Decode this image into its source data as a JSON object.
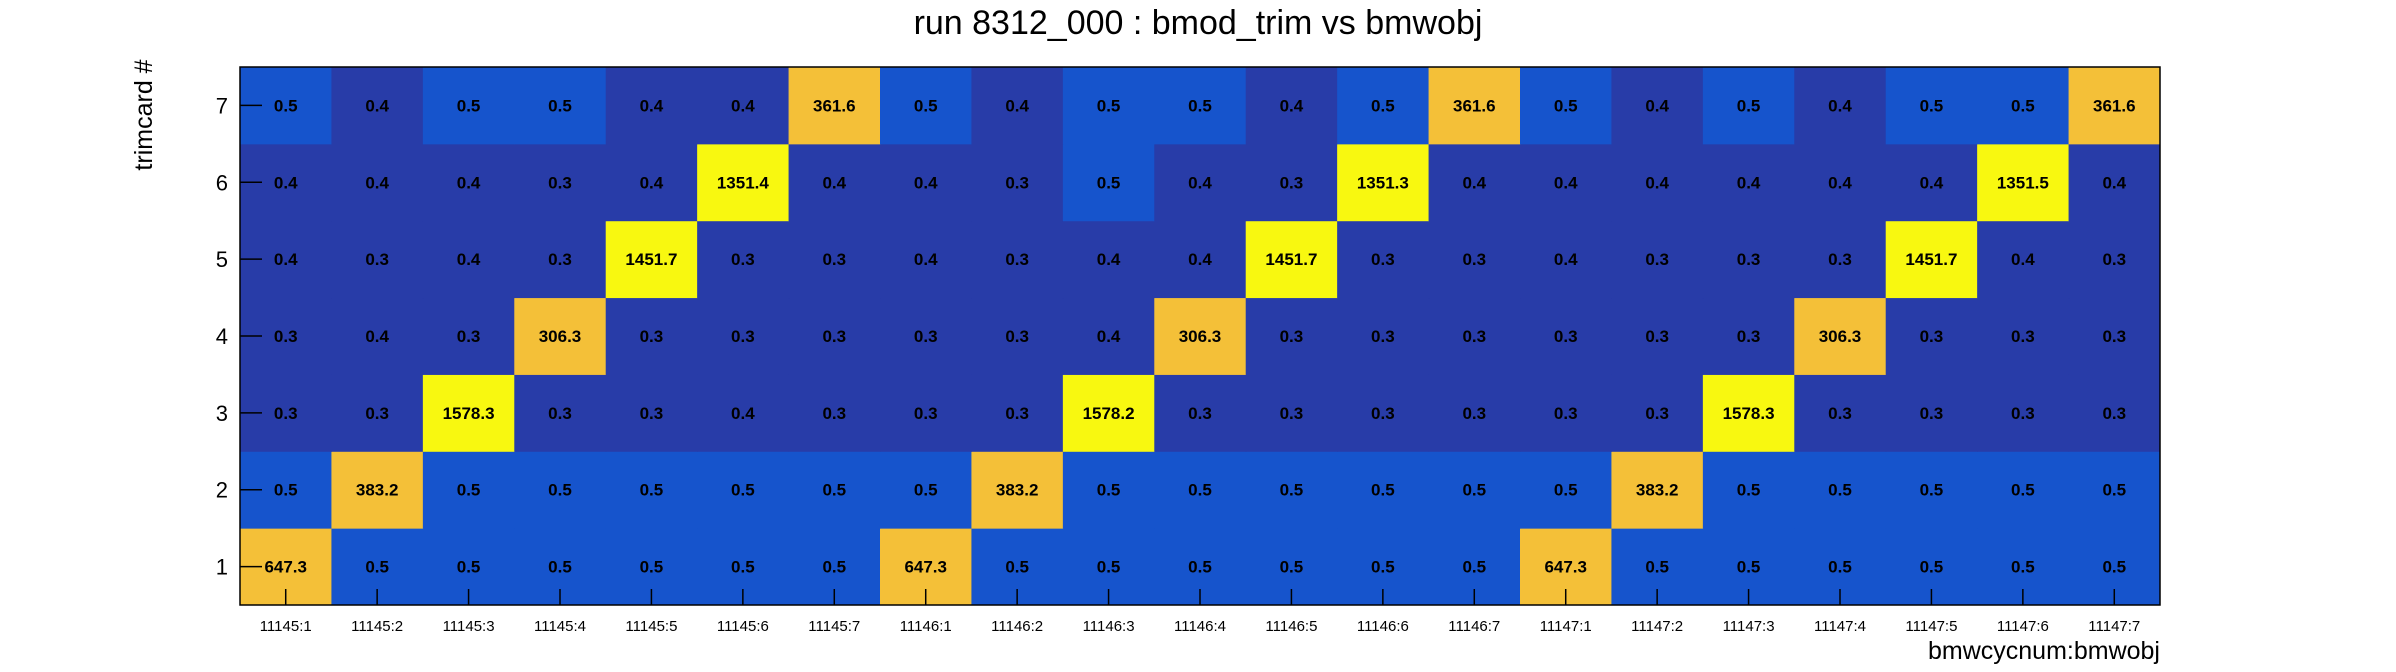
{
  "chart_data": {
    "type": "heatmap",
    "title": "run 8312_000 : bmod_trim vs bmwobj",
    "xlabel": "bmwcycnum:bmwobj",
    "ylabel": "trimcard #",
    "x_categories": [
      "11145:1",
      "11145:2",
      "11145:3",
      "11145:4",
      "11145:5",
      "11145:6",
      "11145:7",
      "11146:1",
      "11146:2",
      "11146:3",
      "11146:4",
      "11146:5",
      "11146:6",
      "11146:7",
      "11147:1",
      "11147:2",
      "11147:3",
      "11147:4",
      "11147:5",
      "11147:6",
      "11147:7"
    ],
    "y_categories": [
      "1",
      "2",
      "3",
      "4",
      "5",
      "6",
      "7"
    ],
    "values": [
      [
        "647.3",
        "0.5",
        "0.5",
        "0.5",
        "0.5",
        "0.5",
        "0.5",
        "647.3",
        "0.5",
        "0.5",
        "0.5",
        "0.5",
        "0.5",
        "0.5",
        "647.3",
        "0.5",
        "0.5",
        "0.5",
        "0.5",
        "0.5",
        "0.5"
      ],
      [
        "0.5",
        "383.2",
        "0.5",
        "0.5",
        "0.5",
        "0.5",
        "0.5",
        "0.5",
        "383.2",
        "0.5",
        "0.5",
        "0.5",
        "0.5",
        "0.5",
        "0.5",
        "383.2",
        "0.5",
        "0.5",
        "0.5",
        "0.5",
        "0.5"
      ],
      [
        "0.3",
        "0.3",
        "1578.3",
        "0.3",
        "0.3",
        "0.4",
        "0.3",
        "0.3",
        "0.3",
        "1578.2",
        "0.3",
        "0.3",
        "0.3",
        "0.3",
        "0.3",
        "0.3",
        "1578.3",
        "0.3",
        "0.3",
        "0.3",
        "0.3"
      ],
      [
        "0.3",
        "0.4",
        "0.3",
        "306.3",
        "0.3",
        "0.3",
        "0.3",
        "0.3",
        "0.3",
        "0.4",
        "306.3",
        "0.3",
        "0.3",
        "0.3",
        "0.3",
        "0.3",
        "0.3",
        "306.3",
        "0.3",
        "0.3",
        "0.3"
      ],
      [
        "0.4",
        "0.3",
        "0.4",
        "0.3",
        "1451.7",
        "0.3",
        "0.3",
        "0.4",
        "0.3",
        "0.4",
        "0.4",
        "1451.7",
        "0.3",
        "0.3",
        "0.4",
        "0.3",
        "0.3",
        "0.3",
        "1451.7",
        "0.4",
        "0.3"
      ],
      [
        "0.4",
        "0.4",
        "0.4",
        "0.3",
        "0.4",
        "1351.4",
        "0.4",
        "0.4",
        "0.3",
        "0.5",
        "0.4",
        "0.3",
        "1351.3",
        "0.4",
        "0.4",
        "0.4",
        "0.4",
        "0.4",
        "0.4",
        "1351.5",
        "0.4"
      ],
      [
        "0.5",
        "0.4",
        "0.5",
        "0.5",
        "0.4",
        "0.4",
        "361.6",
        "0.5",
        "0.4",
        "0.5",
        "0.5",
        "0.4",
        "0.5",
        "361.6",
        "0.5",
        "0.4",
        "0.5",
        "0.4",
        "0.5",
        "0.5",
        "361.6"
      ]
    ],
    "colors": {
      "low": "#283ca8",
      "mid": "#1654cc",
      "mid_high": "#f4c038",
      "high": "#f8f810"
    },
    "grid": false,
    "legend": "none"
  }
}
